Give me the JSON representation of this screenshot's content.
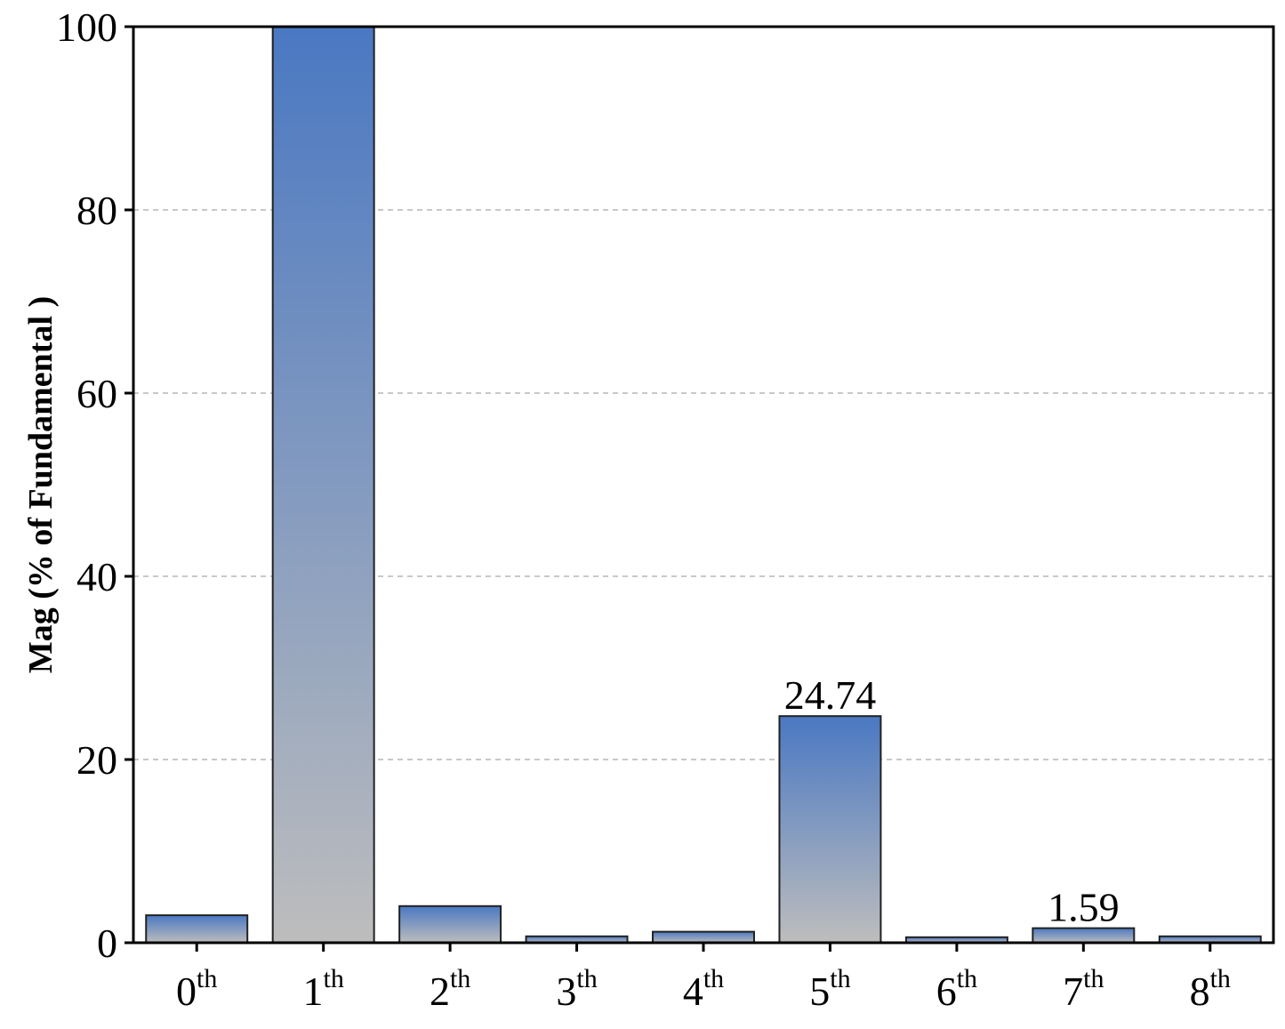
{
  "chart_data": {
    "type": "bar",
    "categories": [
      {
        "base": "0",
        "sup": "th"
      },
      {
        "base": "1",
        "sup": "th"
      },
      {
        "base": "2",
        "sup": "th"
      },
      {
        "base": "3",
        "sup": "th"
      },
      {
        "base": "4",
        "sup": "th"
      },
      {
        "base": "5",
        "sup": "th"
      },
      {
        "base": "6",
        "sup": "th"
      },
      {
        "base": "7",
        "sup": "th"
      },
      {
        "base": "8",
        "sup": "th"
      }
    ],
    "values": [
      3.0,
      100.0,
      4.0,
      0.7,
      1.2,
      24.74,
      0.6,
      1.59,
      0.7
    ],
    "data_labels": [
      "",
      "",
      "",
      "",
      "",
      "24.74",
      "",
      "1.59",
      ""
    ],
    "title": "",
    "xlabel": "",
    "ylabel": "Mag (% of Fundamental )",
    "ylim": [
      0,
      100
    ],
    "yticks": [
      0,
      20,
      40,
      60,
      80,
      100
    ],
    "grid": "horizontal dashed",
    "colors": {
      "bar_top": "#4a78c2",
      "bar_bottom": "#bdbdbd",
      "bar_edge": "#222222",
      "grid": "#c8c8c8",
      "axis": "#000000"
    }
  }
}
